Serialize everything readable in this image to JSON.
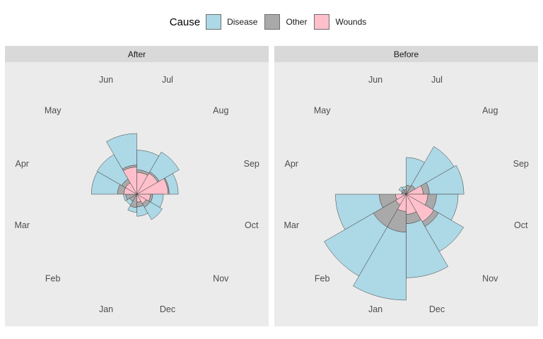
{
  "legend": {
    "title": "Cause",
    "items": [
      {
        "label": "Disease",
        "color": "#ADD8E6"
      },
      {
        "label": "Other",
        "color": "#A9A9A9"
      },
      {
        "label": "Wounds",
        "color": "#FFC0CB"
      }
    ]
  },
  "colors": {
    "page_background": "#FFFFFF",
    "panel_background": "#EBEBEB",
    "strip_background": "#D9D9D9",
    "strip_text": "#1A1A1A",
    "month_label_text": "#4D4D4D",
    "wedge_outline": "#3C3C3C",
    "disease": "#ADD8E6",
    "other": "#A9A9A9",
    "wounds": "#FFC0CB"
  },
  "chart_data": {
    "type": "polar-stacked-bar-rose",
    "description": "Nightingale coxcomb: deaths by month and cause, faceted Before/After sanitary reform; radial sqrt scale; months clockwise, Jul at top-right",
    "radial_scale": "sqrt",
    "stack_order_from_center": [
      "Wounds",
      "Other",
      "Disease"
    ],
    "categories": [
      "Jan",
      "Feb",
      "Mar",
      "Apr",
      "May",
      "Jun",
      "Jul",
      "Aug",
      "Sep",
      "Oct",
      "Nov",
      "Dec"
    ],
    "layout": {
      "max_radius_px": 150,
      "month_label_radius_px": 168,
      "sector_degrees": 30,
      "first_sector_clockwise_from_top": "Jul",
      "grid": "off",
      "legend_position": "top"
    },
    "facets": [
      {
        "label": "After",
        "series": [
          {
            "name": "Disease",
            "values": [
              42,
              24,
              15,
              477,
              508,
              802,
              382,
              483,
              189,
              128,
              178,
              91
            ]
          },
          {
            "name": "Other",
            "values": [
              48,
              19,
              35,
              57,
              37,
              31,
              33,
              25,
              20,
              18,
              32,
              28
            ]
          },
          {
            "name": "Wounds",
            "values": [
              2,
              0,
              0,
              48,
              49,
              209,
              134,
              164,
              276,
              53,
              33,
              18
            ]
          }
        ]
      },
      {
        "label": "Before",
        "series": [
          {
            "name": "Disease",
            "values": [
              2761,
              2120,
              1205,
              1,
              12,
              11,
              359,
              828,
              788,
              503,
              844,
              1725
            ]
          },
          {
            "name": "Other",
            "values": [
              324,
              361,
              172,
              5,
              9,
              6,
              23,
              30,
              70,
              128,
              106,
              131
            ]
          },
          {
            "name": "Wounds",
            "values": [
              83,
              42,
              32,
              0,
              0,
              0,
              0,
              1,
              81,
              132,
              287,
              114
            ]
          }
        ]
      }
    ]
  }
}
